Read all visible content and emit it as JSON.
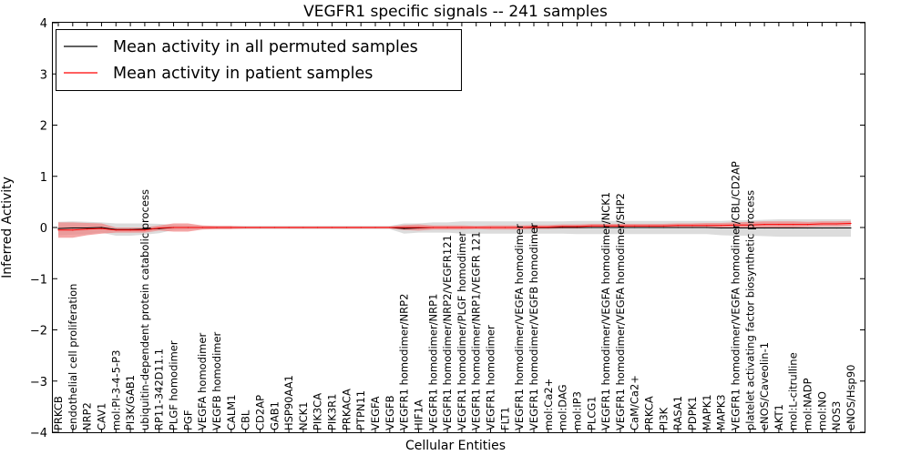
{
  "chart_data": {
    "type": "line",
    "title": "VEGFR1 specific signals -- 241 samples",
    "xlabel": "Cellular Entities",
    "ylabel": "Inferred Activity",
    "ylim": [
      -4,
      4
    ],
    "yticks": [
      -4,
      -3,
      -2,
      -1,
      0,
      1,
      2,
      3,
      4
    ],
    "ytick_labels": [
      "−4",
      "−3",
      "−2",
      "−1",
      "0",
      "1",
      "2",
      "3",
      "4"
    ],
    "legend_position": "top-left",
    "categories": [
      "PRKCB",
      "endothelial cell proliferation",
      "NRP2",
      "CAV1",
      "mol:PI-3-4-5-P3",
      "PI3K/GAB1",
      "ubiquitin-dependent protein catabolic process",
      "RP11-342D11.1",
      "PLGF homodimer",
      "PGF",
      "VEGFA homodimer",
      "VEGFB homodimer",
      "CALM1",
      "CBL",
      "CD2AP",
      "GAB1",
      "HSP90AA1",
      "NCK1",
      "PIK3CA",
      "PIK3R1",
      "PRKACA",
      "PTPN11",
      "VEGFA",
      "VEGFB",
      "VEGFR1 homodimer/NRP2",
      "HIF1A",
      "VEGFR1 homodimer/NRP1",
      "VEGFR1 homodimer/NRP2/VEGFR121",
      "VEGFR1 homodimer/PLGF homodimer",
      "VEGFR1 homodimer/NRP1/VEGFR 121",
      "VEGFR1 homodimer",
      "FLT1",
      "VEGFR1 homodimer/VEGFA homodimer",
      "VEGFR1 homodimer/VEGFB homodimer",
      "mol:Ca2+",
      "mol:DAG",
      "mol:IP3",
      "PLCG1",
      "VEGFR1 homodimer/VEGFA homodimer/NCK1",
      "VEGFR1 homodimer/VEGFA homodimer/SHP2",
      "CaM/Ca2+",
      "PRKCA",
      "PI3K",
      "RASA1",
      "PDPK1",
      "MAPK1",
      "MAPK3",
      "VEGFR1 homodimer/VEGFA homodimer/CBL/CD2AP",
      "platelet activating factor biosynthetic process",
      "eNOS/Caveolin-1",
      "AKT1",
      "mol:L-citrulline",
      "mol:NADP",
      "mol:NO",
      "NOS3",
      "eNOS/Hsp90"
    ],
    "series": [
      {
        "name": "Mean activity in all permuted samples",
        "color": "#000000",
        "band_color": "#bfbfbf",
        "values": [
          -0.02,
          -0.01,
          -0.01,
          0.0,
          -0.04,
          -0.04,
          -0.03,
          -0.02,
          0.0,
          0.0,
          0.0,
          0.0,
          0.0,
          0.0,
          0.0,
          0.0,
          0.0,
          0.0,
          0.0,
          0.0,
          0.0,
          0.0,
          0.0,
          0.0,
          -0.02,
          -0.01,
          0.0,
          0.0,
          0.0,
          0.0,
          0.0,
          0.0,
          0.0,
          0.0,
          0.0,
          0.0,
          0.0,
          0.0,
          0.0,
          0.0,
          0.0,
          0.0,
          0.0,
          0.0,
          0.0,
          0.0,
          -0.01,
          -0.01,
          -0.01,
          -0.01,
          -0.01,
          -0.01,
          -0.01,
          -0.01,
          -0.01,
          -0.01
        ],
        "band_half_width": [
          0.13,
          0.13,
          0.12,
          0.1,
          0.12,
          0.12,
          0.11,
          0.09,
          0.05,
          0.04,
          0.03,
          0.03,
          0.03,
          0.03,
          0.03,
          0.03,
          0.03,
          0.03,
          0.03,
          0.03,
          0.03,
          0.03,
          0.03,
          0.03,
          0.1,
          0.09,
          0.1,
          0.1,
          0.12,
          0.12,
          0.12,
          0.12,
          0.12,
          0.12,
          0.12,
          0.12,
          0.13,
          0.13,
          0.13,
          0.13,
          0.13,
          0.13,
          0.13,
          0.13,
          0.13,
          0.13,
          0.14,
          0.15,
          0.15,
          0.16,
          0.17,
          0.17,
          0.17,
          0.17,
          0.17,
          0.17
        ]
      },
      {
        "name": "Mean activity in patient samples",
        "color": "#ff0000",
        "band_color": "#f08080",
        "values": [
          -0.05,
          -0.05,
          -0.03,
          -0.02,
          -0.05,
          -0.05,
          -0.05,
          -0.01,
          0.0,
          0.0,
          0.0,
          0.0,
          0.0,
          0.0,
          0.0,
          0.0,
          0.0,
          0.0,
          0.0,
          0.0,
          0.0,
          0.0,
          0.0,
          0.0,
          0.0,
          0.0,
          0.0,
          0.0,
          0.0,
          0.0,
          0.0,
          0.0,
          0.0,
          0.01,
          0.01,
          0.02,
          0.02,
          0.03,
          0.03,
          0.03,
          0.03,
          0.03,
          0.03,
          0.04,
          0.04,
          0.04,
          0.04,
          0.05,
          0.05,
          0.06,
          0.06,
          0.06,
          0.06,
          0.07,
          0.07,
          0.08
        ],
        "band_half_width": [
          0.15,
          0.15,
          0.12,
          0.1,
          0.05,
          0.05,
          0.05,
          0.05,
          0.08,
          0.08,
          0.04,
          0.03,
          0.03,
          0.02,
          0.02,
          0.02,
          0.02,
          0.02,
          0.02,
          0.02,
          0.02,
          0.02,
          0.02,
          0.02,
          0.05,
          0.06,
          0.04,
          0.04,
          0.04,
          0.03,
          0.04,
          0.04,
          0.04,
          0.04,
          0.04,
          0.04,
          0.04,
          0.04,
          0.04,
          0.04,
          0.04,
          0.04,
          0.04,
          0.04,
          0.04,
          0.05,
          0.05,
          0.05,
          0.06,
          0.06,
          0.06,
          0.06,
          0.05,
          0.05,
          0.05,
          0.05
        ]
      }
    ]
  }
}
